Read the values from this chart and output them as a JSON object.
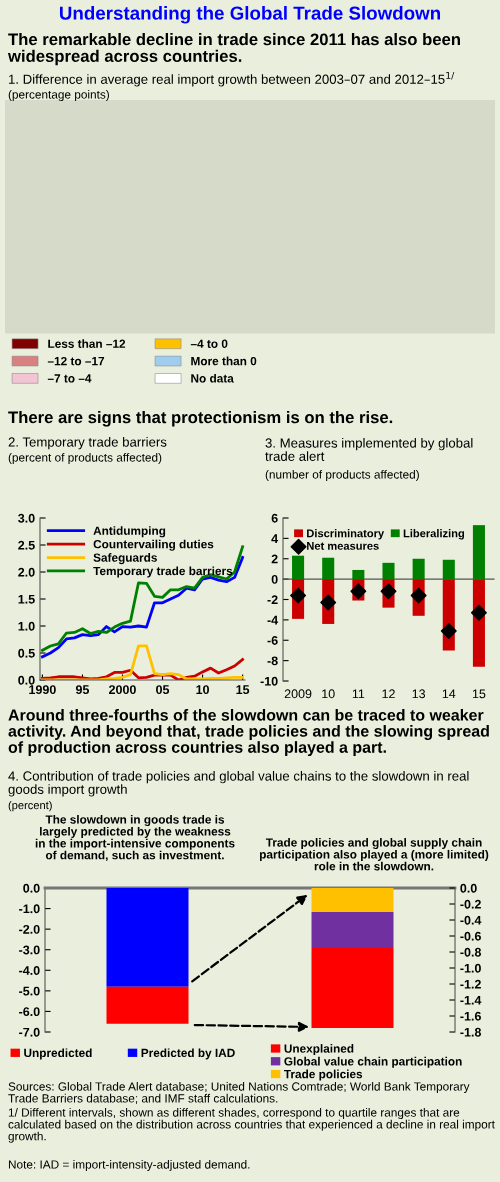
{
  "chart_data": [
    {
      "type": "other",
      "title": "Understanding the Global Trade Slowdown",
      "subtitle": "The remarkable decline in trade since 2011 has also been widespread across countries.",
      "annotations": [
        "1. Difference in average real import growth between 2003–07 and 2012–15$^{1/}$",
        "(percentage points)"
      ],
      "categories": [
        "Less than –12",
        "–4 to 0",
        "–12 to –17",
        "More than 0",
        "–7 to –4",
        "No data"
      ],
      "colors": [
        "#800000",
        "#ffc000",
        "#d98080",
        "#9fcdf0",
        "#f2c4d4",
        "#ffffff"
      ]
    },
    {
      "type": "line",
      "title": "2. Temporary trade barriers",
      "subtitle": "(percent of products affected)",
      "annotations": [
        "There are signs that protectionism is on the rise."
      ],
      "x": [
        1990,
        1991,
        1992,
        1993,
        1994,
        1995,
        1996,
        1997,
        1998,
        1999,
        2000,
        2001,
        2002,
        2003,
        2004,
        2005,
        2006,
        2007,
        2008,
        2009,
        2010,
        2011,
        2012,
        2013,
        2014,
        2015
      ],
      "series": [
        {
          "name": "Antidumping",
          "color": "#0000ff",
          "values": [
            0.43,
            0.5,
            0.6,
            0.76,
            0.78,
            0.84,
            0.82,
            0.84,
            0.99,
            0.89,
            0.99,
            0.98,
            1.0,
            0.98,
            1.43,
            1.43,
            1.5,
            1.57,
            1.7,
            1.67,
            1.87,
            1.9,
            1.85,
            1.82,
            1.9,
            2.27
          ]
        },
        {
          "name": "Countervailing duties",
          "color": "#cc0000",
          "values": [
            0.03,
            0.04,
            0.06,
            0.06,
            0.06,
            0.04,
            0.02,
            0.03,
            0.06,
            0.14,
            0.14,
            0.18,
            0.04,
            0.05,
            0.09,
            0.09,
            0.09,
            0.0,
            0.05,
            0.07,
            0.15,
            0.22,
            0.13,
            0.19,
            0.26,
            0.38
          ]
        },
        {
          "name": "Safeguards",
          "color": "#ffc000",
          "values": [
            0,
            0,
            0,
            0,
            0,
            0,
            0,
            0,
            0.02,
            0.03,
            0.05,
            0.1,
            0.63,
            0.63,
            0.12,
            0.1,
            0.12,
            0.1,
            0.02,
            0.02,
            0.02,
            0.03,
            0.03,
            0.04,
            0.05,
            0.05
          ]
        },
        {
          "name": "Temporary trade barriers",
          "color": "#008000",
          "values": [
            0.55,
            0.63,
            0.67,
            0.87,
            0.88,
            0.95,
            0.86,
            0.9,
            0.88,
            0.98,
            1.05,
            1.09,
            1.8,
            1.79,
            1.55,
            1.53,
            1.67,
            1.67,
            1.73,
            1.7,
            1.9,
            1.95,
            1.91,
            1.87,
            2.0,
            2.47
          ]
        }
      ],
      "xlim": [
        1989.7,
        2015.3
      ],
      "xticks": [
        1990,
        {
          "value": 1995,
          "label": "95"
        },
        2000,
        {
          "value": 2005,
          "label": "05"
        },
        {
          "value": 2010,
          "label": "10"
        },
        {
          "value": 2015,
          "label": "15"
        }
      ],
      "ylim": [
        0,
        3
      ],
      "yticks": [
        {
          "value": 0,
          "label": "0.0"
        },
        0.5,
        {
          "value": 1,
          "label": "1.0"
        },
        1.5,
        {
          "value": 2,
          "label": "2.0"
        },
        2.5,
        {
          "value": 3,
          "label": "3.0"
        }
      ],
      "legend": "top left",
      "line_style": "solid"
    },
    {
      "type": "bar",
      "stacked": true,
      "title": "3. Measures implemented by global trade alert",
      "subtitle": "(number of products affected)",
      "categories": [
        "2009",
        "10",
        "11",
        "12",
        "13",
        "14",
        "15"
      ],
      "series": [
        {
          "name": "Discriminatory",
          "color": "#cc0000",
          "values": [
            -3.9,
            -4.4,
            -2.1,
            -2.8,
            -3.6,
            -7.0,
            -8.6
          ]
        },
        {
          "name": "Liberalizing",
          "color": "#008000",
          "values": [
            2.3,
            2.1,
            0.9,
            1.6,
            2.0,
            1.9,
            5.3
          ]
        },
        {
          "name": "Net measures",
          "type": "scatter",
          "color": "#000000",
          "marker": "diamond",
          "values": [
            -1.6,
            -2.3,
            -1.2,
            -1.2,
            -1.6,
            -5.1,
            -3.3
          ]
        }
      ],
      "ylim": [
        -10,
        6
      ],
      "yticks": [
        -10,
        -8,
        -6,
        -4,
        -2,
        0,
        2,
        4,
        6
      ],
      "legend": "top"
    },
    {
      "type": "bar",
      "stacked": true,
      "title": "4. Contribution of trade policies and global value chains to the slowdown in real goods import growth",
      "subtitle": "(percent)",
      "annotations": [
        "Around three-fourths of the slowdown can be traced to weaker activity. And beyond that, trade policies and the slowing spread of production across countries also played a part.",
        "The slowdown in goods trade is largely predicted by the weakness in the import-intensive components of demand, such as investment.",
        "Trade policies and global supply chain participation also played a (more limited) role in the slowdown.",
        "Sources: Global Trade Alert database; United Nations Comtrade; World Bank Temporary Trade Barriers database; and IMF staff calculations.",
        "1/ Different intervals, shown as different shades, correspond to quartile ranges that are calculated based on the distribution across countries that experienced a decline in real import growth.",
        "Note: IAD = import-intensity-adjusted demand."
      ],
      "categories": [
        null,
        null
      ],
      "series": [
        {
          "name": "Predicted by IAD",
          "color": "#0000ff",
          "values": [
            -4.8,
            null
          ]
        },
        {
          "name": "Unpredicted",
          "color": "#ff0000",
          "values": [
            -1.8,
            null
          ]
        },
        {
          "name": "Trade policies",
          "color": "#ffc000",
          "axis": "y2",
          "values": [
            null,
            -0.3
          ]
        },
        {
          "name": "Global value chain participation",
          "color": "#7030a0",
          "axis": "y2",
          "values": [
            null,
            -0.45
          ]
        },
        {
          "name": "Unexplained",
          "color": "#ff0000",
          "axis": "y2",
          "values": [
            null,
            -1.0
          ]
        }
      ],
      "ylim": [
        -7,
        0
      ],
      "yticks": [
        {
          "value": 0,
          "label": "0.0"
        },
        {
          "value": -1,
          "label": "-1.0"
        },
        {
          "value": -2,
          "label": "-2.0"
        },
        {
          "value": -3,
          "label": "-3.0"
        },
        {
          "value": -4,
          "label": "-4.0"
        },
        {
          "value": -5,
          "label": "-5.0"
        },
        {
          "value": -6,
          "label": "-6.0"
        },
        {
          "value": -7,
          "label": "-7.0"
        }
      ],
      "y2lim": [
        -1.8,
        0
      ],
      "y2ticks": [
        {
          "value": 0,
          "label": "0.0"
        },
        {
          "value": -0.2,
          "label": "-0.2"
        },
        {
          "value": -0.4,
          "label": "-0.4"
        },
        {
          "value": -0.6,
          "label": "-0.6"
        },
        {
          "value": -0.8,
          "label": "-0.8"
        },
        {
          "value": -1,
          "label": "-1.0"
        },
        {
          "value": -1.2,
          "label": "-1.2"
        },
        {
          "value": -1.4,
          "label": "-1.4"
        },
        {
          "value": -1.6,
          "label": "-1.6"
        },
        {
          "value": -1.8,
          "label": "-1.8"
        }
      ],
      "legend": "bottom"
    }
  ]
}
